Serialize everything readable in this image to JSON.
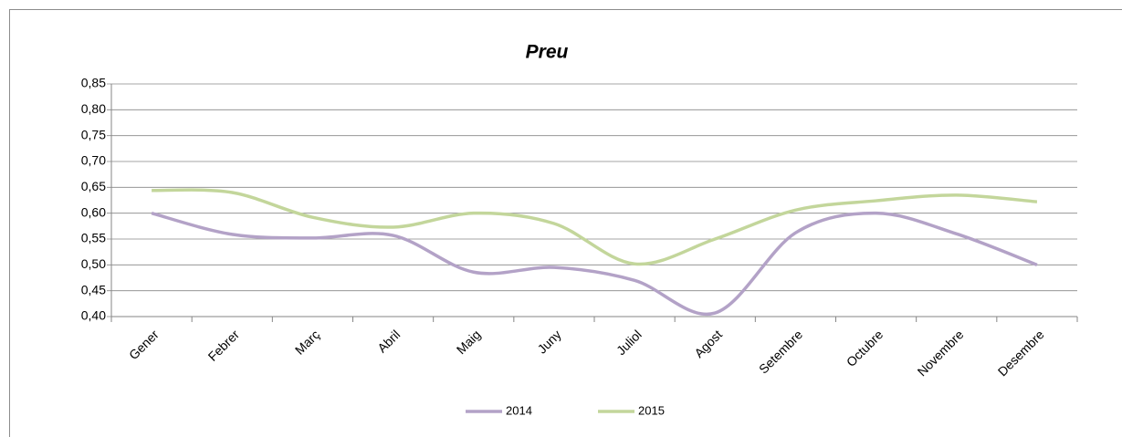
{
  "chart_data": {
    "type": "line",
    "title": "Preu",
    "categories": [
      "Gener",
      "Febrer",
      "Març",
      "Abril",
      "Maig",
      "Juny",
      "Juliol",
      "Agost",
      "Setembre",
      "Octubre",
      "Novembre",
      "Desembre"
    ],
    "series": [
      {
        "name": "2014",
        "color": "#b3a2c7",
        "values": [
          0.6,
          0.559,
          0.552,
          0.557,
          0.486,
          0.495,
          0.47,
          0.407,
          0.562,
          0.6,
          0.56,
          0.5
        ]
      },
      {
        "name": "2015",
        "color": "#c3d69b",
        "values": [
          0.644,
          0.64,
          0.592,
          0.573,
          0.6,
          0.58,
          0.502,
          0.55,
          0.606,
          0.624,
          0.635,
          0.622
        ]
      }
    ],
    "ylim": [
      0.4,
      0.85
    ],
    "yticks": [
      {
        "value": 0.4,
        "label": "0,40"
      },
      {
        "value": 0.45,
        "label": "0,45"
      },
      {
        "value": 0.5,
        "label": "0,50"
      },
      {
        "value": 0.55,
        "label": "0,55"
      },
      {
        "value": 0.6,
        "label": "0,60"
      },
      {
        "value": 0.65,
        "label": "0,65"
      },
      {
        "value": 0.7,
        "label": "0,70"
      },
      {
        "value": 0.75,
        "label": "0,75"
      },
      {
        "value": 0.8,
        "label": "0,80"
      },
      {
        "value": 0.85,
        "label": "0,85"
      }
    ],
    "grid": true,
    "smooth": true,
    "legend": "bottom"
  }
}
